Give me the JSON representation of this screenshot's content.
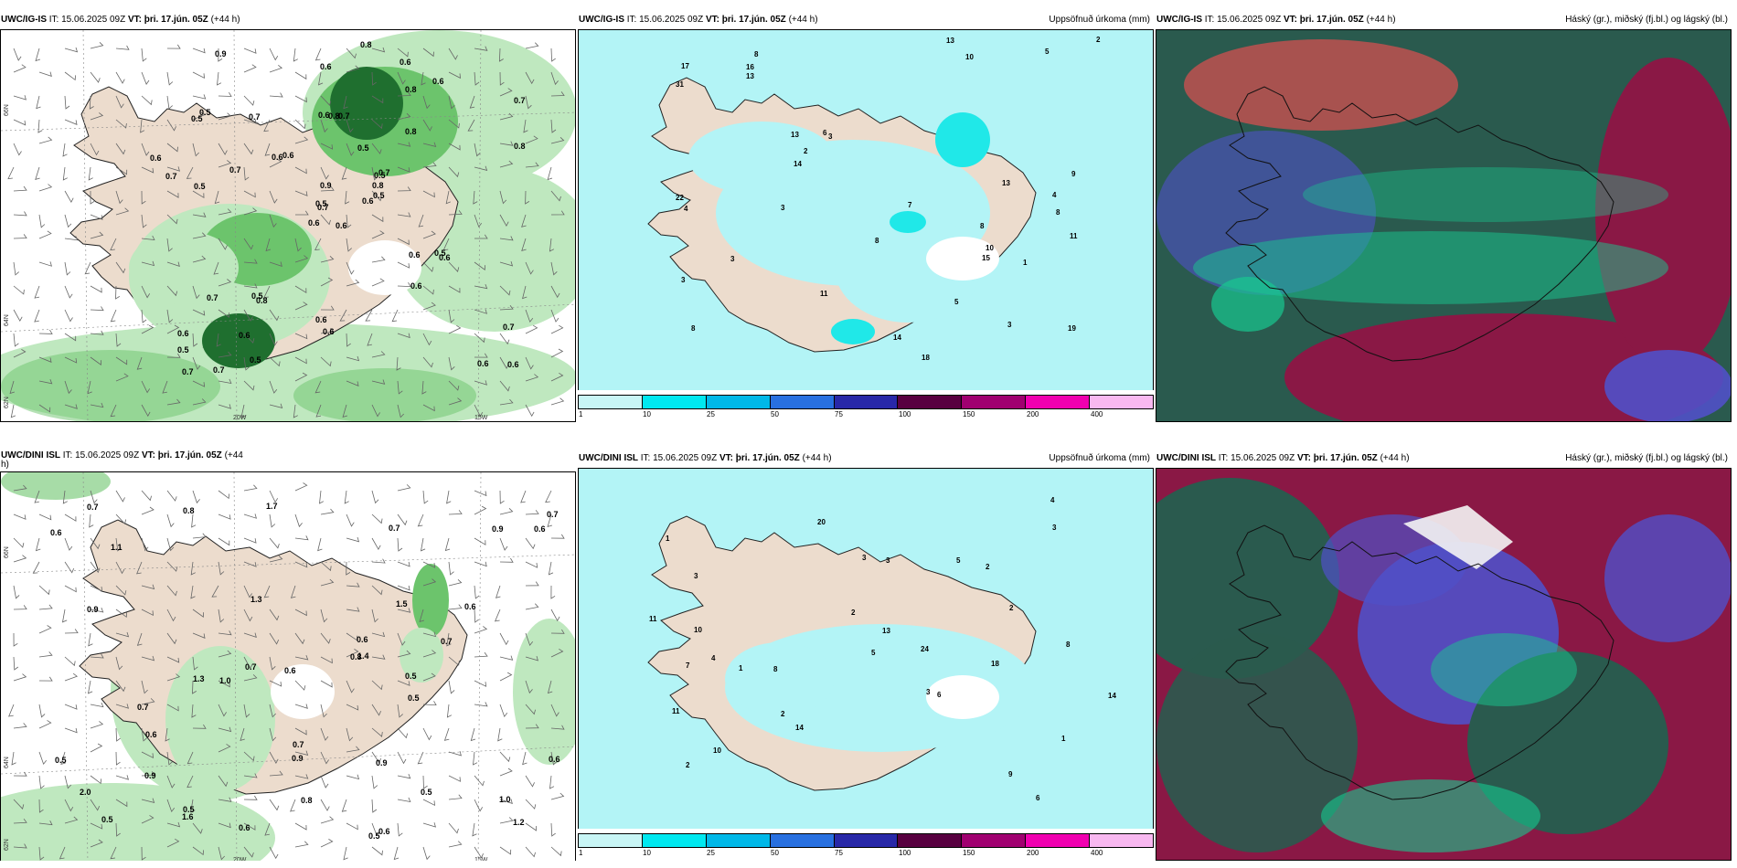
{
  "panels": {
    "p1": {
      "model": "UWC/IG-IS",
      "it": "IT: 15.06.2025 09Z",
      "vt_label": "VT:",
      "vt": "þri. 17.jún. 05Z",
      "lead": "(+44 h)",
      "right": ""
    },
    "p2": {
      "model": "UWC/IG-IS",
      "it": "IT: 15.06.2025 09Z",
      "vt_label": "VT:",
      "vt": "þri. 17.jún. 05Z",
      "lead": "(+44 h)",
      "right": "Uppsöfnuð úrkoma (mm)"
    },
    "p3": {
      "model": "UWC/IG-IS",
      "it": "IT: 15.06.2025 09Z",
      "vt_label": "VT:",
      "vt": "þri. 17.jún. 05Z",
      "lead": "(+44 h)",
      "right": "Háský (gr.), miðský (fj.bl.) og lágský (bl.)"
    },
    "p4": {
      "model": "UWC/DINI ISL",
      "it": "IT: 15.06.2025 09Z",
      "vt_label": "VT:",
      "vt": "þri. 17.jún. 05Z",
      "lead": "(+44",
      "lead2": "h)",
      "right": ""
    },
    "p5": {
      "model": "UWC/DINI ISL",
      "it": "IT: 15.06.2025 09Z",
      "vt_label": "VT:",
      "vt": "þri. 17.jún. 05Z",
      "lead": "(+44 h)",
      "right": "Uppsöfnuð úrkoma (mm)"
    },
    "p6": {
      "model": "UWC/DINI ISL",
      "it": "IT: 15.06.2025 09Z",
      "vt_label": "VT:",
      "vt": "þri. 17.jún. 05Z",
      "lead": "(+44 h)",
      "right": "Háský (gr.), miðský (fj.bl.) og lágský (bl.)"
    }
  },
  "grid_labels": {
    "lat66": "66N",
    "lat64": "64N",
    "lat62": "62N",
    "lon20": "20W",
    "lon15": "15W"
  },
  "colorbar": {
    "ticks": [
      "1",
      "10",
      "25",
      "50",
      "75",
      "100",
      "150",
      "200",
      "400"
    ],
    "colors": [
      "#c8f5f5",
      "#00e8f0",
      "#00b8e8",
      "#2870e0",
      "#2828a8",
      "#580040",
      "#a00070",
      "#f000b0",
      "#f8b8f0"
    ]
  },
  "colors": {
    "land": "#ecdccd",
    "sea_precip": "#b3f4f6",
    "light_green": "#bfe8bf",
    "mid_green": "#6cc46c",
    "dark_green": "#1f6f2f",
    "cloud_teal": "#2a5a4e",
    "cloud_maroon": "#8a1845",
    "cloud_blue": "#5050c8",
    "cloud_aqua": "#18c890"
  },
  "p1_values": [
    "0.6",
    "0.5",
    "0.7",
    "0.6",
    "0.5",
    "0.8",
    "0.6",
    "0.7",
    "0.8",
    "0.6",
    "0.9",
    "0.6",
    "0.5",
    "0.7",
    "0.6",
    "0.8",
    "0.7",
    "0.6",
    "0.5",
    "0.7",
    "0.6",
    "0.5",
    "0.6",
    "0.8",
    "0.7",
    "0.6",
    "0.5",
    "0.6",
    "0.7",
    "0.6",
    "0.8",
    "0.5",
    "0.6",
    "0.9",
    "0.7",
    "0.6",
    "0.5",
    "0.6",
    "0.7",
    "0.5",
    "0.8",
    "0.6",
    "0.7",
    "0.6",
    "0.5",
    "0.6",
    "0.8",
    "0.7",
    "0.6",
    "0.5"
  ],
  "p2_values": [
    "8",
    "8",
    "8",
    "8",
    "3",
    "3",
    "3",
    "10",
    "13",
    "18",
    "31",
    "22",
    "17",
    "19",
    "11",
    "9",
    "8",
    "7",
    "6",
    "3",
    "2",
    "5",
    "14",
    "11",
    "13",
    "16",
    "10",
    "4",
    "13",
    "13",
    "14",
    "5",
    "2",
    "3",
    "4",
    "1",
    "15"
  ],
  "p4_values": [
    "0.6",
    "0.5",
    "0.5",
    "0.5",
    "0.8",
    "1.1",
    "1.3",
    "1.2",
    "1.7",
    "1.3",
    "0.9",
    "0.8",
    "0.7",
    "0.9",
    "0.7",
    "0.8",
    "0.9",
    "1.6",
    "1.0",
    "0.6",
    "0.9",
    "0.7",
    "0.6",
    "0.5",
    "0.6",
    "0.7",
    "0.5",
    "0.6",
    "0.7",
    "0.5",
    "0.6",
    "0.6",
    "0.7",
    "0.6",
    "0.9",
    "0.5",
    "0.6",
    "2.0",
    "1.5",
    "1.0",
    "1.4",
    "0.7"
  ],
  "p5_values": [
    "6",
    "4",
    "3",
    "1",
    "1",
    "3",
    "10",
    "8",
    "2",
    "3",
    "5",
    "9",
    "14",
    "20",
    "24",
    "11",
    "18",
    "13",
    "11",
    "2",
    "4",
    "3",
    "2",
    "14",
    "8",
    "10",
    "1",
    "5",
    "2",
    "3",
    "6",
    "7",
    "2"
  ]
}
